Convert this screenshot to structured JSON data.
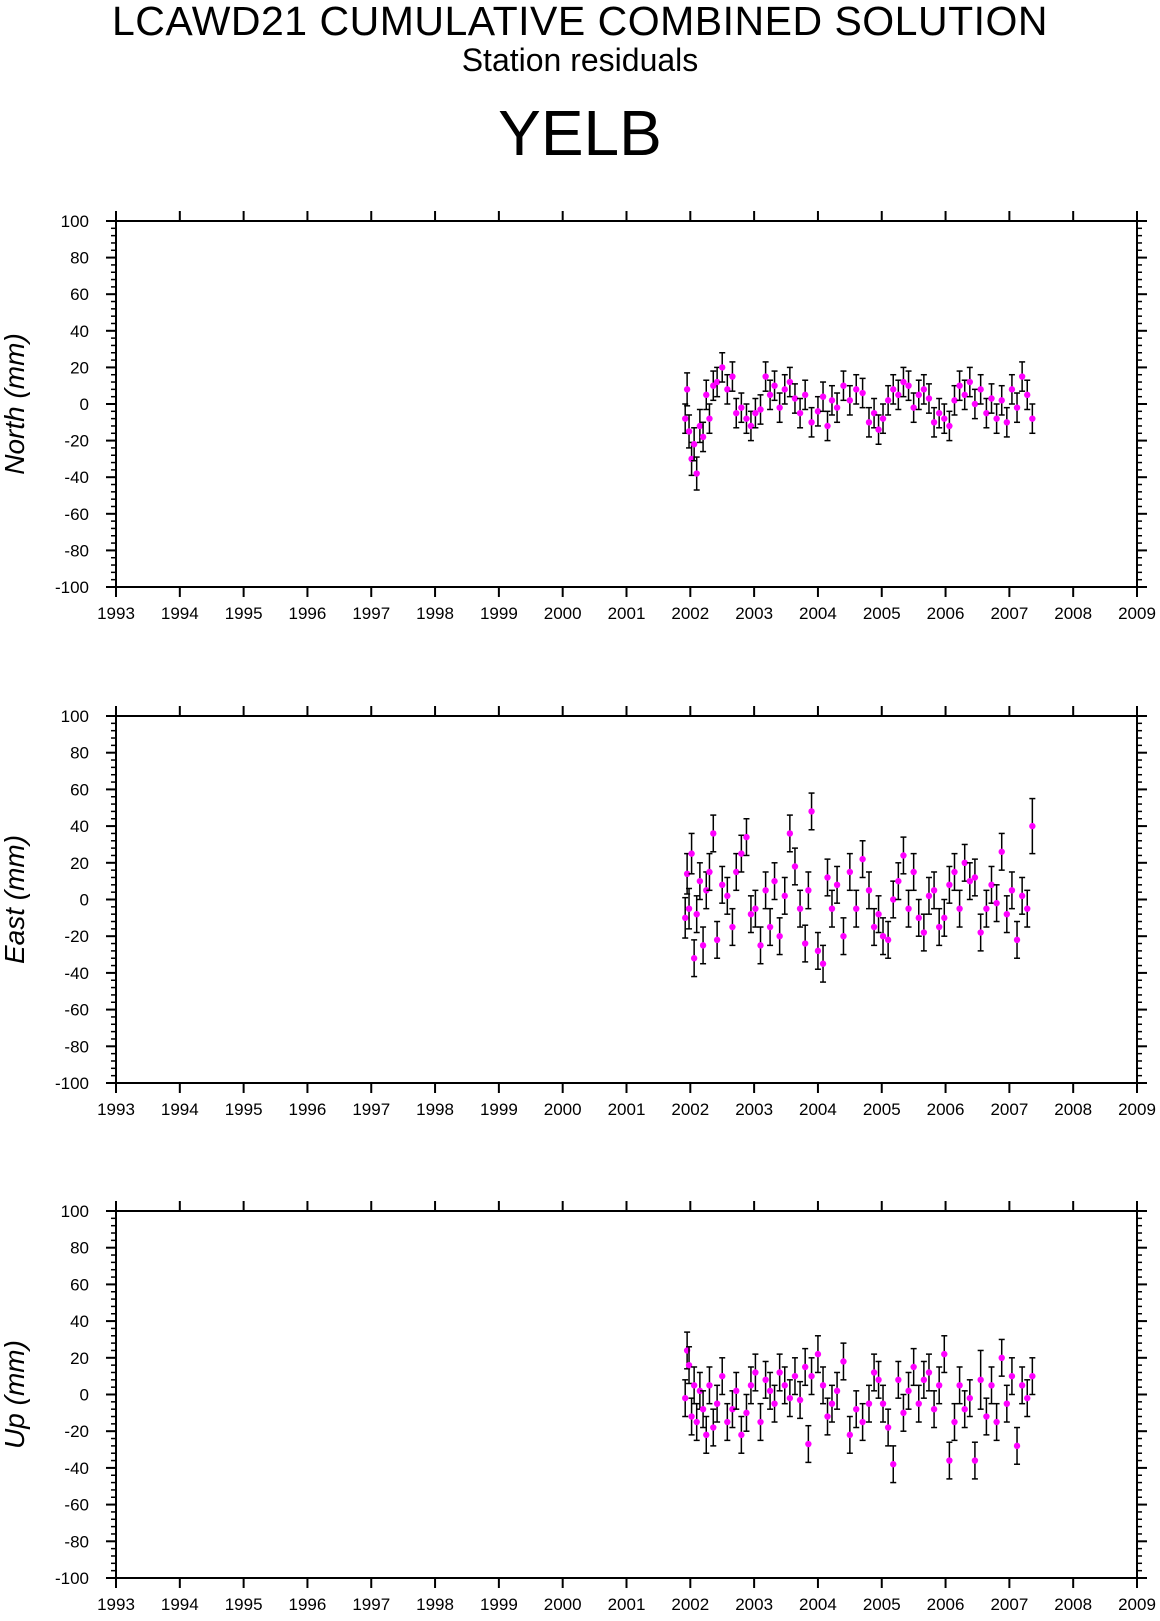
{
  "header": {
    "title": "LCAWD21 CUMULATIVE COMBINED SOLUTION",
    "subtitle": "Station residuals",
    "station": "YELB"
  },
  "colors": {
    "marker": "#ff00ff",
    "errorbar": "#000000",
    "axis": "#000000"
  },
  "chart_data": [
    {
      "type": "scatter",
      "ylabel": "North (mm)",
      "ylim": [
        -100,
        100
      ],
      "xlim": [
        1993,
        2009
      ],
      "x_tick_labels": [
        "1993",
        "1994",
        "1995",
        "1996",
        "1997",
        "1998",
        "1999",
        "2000",
        "2001",
        "2002",
        "2003",
        "2004",
        "2005",
        "2006",
        "2007",
        "2008",
        "2009"
      ],
      "y_tick_labels": [
        "100",
        "80",
        "60",
        "40",
        "20",
        "0",
        "-20",
        "-40",
        "-60",
        "-80",
        "-100"
      ],
      "error_bars": true,
      "series": [
        {
          "x": [
            2001.92,
            2001.95,
            2001.98,
            2002.02,
            2002.06,
            2002.1,
            2002.15,
            2002.2,
            2002.25,
            2002.3,
            2002.36,
            2002.42,
            2002.5,
            2002.58,
            2002.66,
            2002.72,
            2002.8,
            2002.88,
            2002.95,
            2003.02,
            2003.1,
            2003.18,
            2003.25,
            2003.32,
            2003.4,
            2003.48,
            2003.56,
            2003.64,
            2003.72,
            2003.8,
            2003.9,
            2004.0,
            2004.08,
            2004.15,
            2004.22,
            2004.3,
            2004.4,
            2004.5,
            2004.6,
            2004.7,
            2004.8,
            2004.88,
            2004.95,
            2005.02,
            2005.1,
            2005.18,
            2005.26,
            2005.34,
            2005.42,
            2005.5,
            2005.58,
            2005.66,
            2005.74,
            2005.82,
            2005.9,
            2005.98,
            2006.06,
            2006.14,
            2006.22,
            2006.3,
            2006.38,
            2006.46,
            2006.55,
            2006.64,
            2006.72,
            2006.8,
            2006.88,
            2006.96,
            2007.04,
            2007.12,
            2007.2,
            2007.28,
            2007.36
          ],
          "y": [
            -8,
            8,
            -15,
            -30,
            -22,
            -38,
            -12,
            -18,
            5,
            -8,
            10,
            12,
            20,
            8,
            15,
            -5,
            -2,
            -8,
            -12,
            -5,
            -3,
            15,
            5,
            10,
            -2,
            8,
            12,
            3,
            -5,
            5,
            -10,
            -4,
            4,
            -12,
            2,
            -2,
            10,
            2,
            8,
            6,
            -10,
            -5,
            -14,
            -8,
            2,
            8,
            5,
            12,
            10,
            -2,
            5,
            8,
            3,
            -10,
            -5,
            -8,
            -12,
            2,
            10,
            5,
            12,
            0,
            8,
            -5,
            3,
            -8,
            2,
            -10,
            8,
            -2,
            15,
            5,
            -8
          ],
          "err": [
            8,
            9,
            9,
            9,
            9,
            9,
            9,
            8,
            8,
            8,
            8,
            8,
            8,
            8,
            8,
            8,
            8,
            8,
            8,
            8,
            8,
            8,
            8,
            8,
            8,
            8,
            8,
            8,
            8,
            8,
            8,
            8,
            8,
            8,
            8,
            8,
            8,
            8,
            8,
            8,
            8,
            8,
            8,
            8,
            8,
            8,
            8,
            8,
            8,
            8,
            8,
            8,
            8,
            8,
            8,
            8,
            8,
            8,
            8,
            8,
            8,
            8,
            8,
            8,
            8,
            8,
            8,
            8,
            8,
            8,
            8,
            8,
            8
          ]
        }
      ]
    },
    {
      "type": "scatter",
      "ylabel": "East (mm)",
      "ylim": [
        -100,
        100
      ],
      "xlim": [
        1993,
        2009
      ],
      "x_tick_labels": [
        "1993",
        "1994",
        "1995",
        "1996",
        "1997",
        "1998",
        "1999",
        "2000",
        "2001",
        "2002",
        "2003",
        "2004",
        "2005",
        "2006",
        "2007",
        "2008",
        "2009"
      ],
      "y_tick_labels": [
        "100",
        "80",
        "60",
        "40",
        "20",
        "0",
        "-20",
        "-40",
        "-60",
        "-80",
        "-100"
      ],
      "error_bars": true,
      "series": [
        {
          "x": [
            2001.92,
            2001.95,
            2001.98,
            2002.02,
            2002.06,
            2002.1,
            2002.15,
            2002.2,
            2002.25,
            2002.3,
            2002.36,
            2002.42,
            2002.5,
            2002.58,
            2002.66,
            2002.72,
            2002.8,
            2002.88,
            2002.95,
            2003.02,
            2003.1,
            2003.18,
            2003.25,
            2003.32,
            2003.4,
            2003.48,
            2003.56,
            2003.64,
            2003.72,
            2003.8,
            2003.85,
            2003.9,
            2004.0,
            2004.08,
            2004.15,
            2004.22,
            2004.3,
            2004.4,
            2004.5,
            2004.6,
            2004.7,
            2004.8,
            2004.88,
            2004.95,
            2005.02,
            2005.1,
            2005.18,
            2005.26,
            2005.34,
            2005.42,
            2005.5,
            2005.58,
            2005.66,
            2005.74,
            2005.82,
            2005.9,
            2005.98,
            2006.06,
            2006.14,
            2006.22,
            2006.3,
            2006.38,
            2006.46,
            2006.55,
            2006.64,
            2006.72,
            2006.8,
            2006.88,
            2006.96,
            2007.04,
            2007.12,
            2007.2,
            2007.28,
            2007.36
          ],
          "y": [
            -10,
            14,
            -5,
            25,
            -32,
            -8,
            10,
            -25,
            5,
            15,
            36,
            -22,
            8,
            2,
            -15,
            15,
            25,
            34,
            -8,
            -5,
            -25,
            5,
            -15,
            10,
            -20,
            2,
            36,
            18,
            -5,
            -24,
            5,
            48,
            -28,
            -35,
            12,
            -5,
            8,
            -20,
            15,
            -5,
            22,
            5,
            -15,
            -8,
            -20,
            -22,
            0,
            10,
            24,
            -5,
            15,
            -10,
            -18,
            2,
            5,
            -15,
            -10,
            8,
            15,
            -5,
            20,
            10,
            12,
            -18,
            -5,
            8,
            -2,
            26,
            -8,
            5,
            -22,
            2,
            -5,
            40
          ],
          "err": [
            11,
            11,
            11,
            11,
            10,
            10,
            10,
            10,
            10,
            10,
            10,
            10,
            10,
            10,
            10,
            10,
            10,
            10,
            10,
            10,
            10,
            10,
            10,
            10,
            10,
            10,
            10,
            10,
            10,
            10,
            10,
            10,
            10,
            10,
            10,
            10,
            10,
            10,
            10,
            10,
            10,
            10,
            10,
            10,
            10,
            10,
            10,
            10,
            10,
            10,
            10,
            10,
            10,
            10,
            10,
            10,
            10,
            10,
            10,
            10,
            10,
            10,
            10,
            10,
            10,
            10,
            10,
            10,
            10,
            10,
            10,
            10,
            10,
            15
          ]
        }
      ]
    },
    {
      "type": "scatter",
      "ylabel": "Up (mm)",
      "ylim": [
        -100,
        100
      ],
      "xlim": [
        1993,
        2009
      ],
      "x_tick_labels": [
        "1993",
        "1994",
        "1995",
        "1996",
        "1997",
        "1998",
        "1999",
        "2000",
        "2001",
        "2002",
        "2003",
        "2004",
        "2005",
        "2006",
        "2007",
        "2008",
        "2009"
      ],
      "y_tick_labels": [
        "100",
        "80",
        "60",
        "40",
        "20",
        "0",
        "-20",
        "-40",
        "-60",
        "-80",
        "-100"
      ],
      "error_bars": true,
      "series": [
        {
          "x": [
            2001.92,
            2001.95,
            2001.98,
            2002.02,
            2002.06,
            2002.1,
            2002.15,
            2002.2,
            2002.25,
            2002.3,
            2002.36,
            2002.42,
            2002.5,
            2002.58,
            2002.66,
            2002.72,
            2002.8,
            2002.88,
            2002.95,
            2003.02,
            2003.1,
            2003.18,
            2003.25,
            2003.32,
            2003.4,
            2003.48,
            2003.56,
            2003.64,
            2003.72,
            2003.8,
            2003.85,
            2003.9,
            2004.0,
            2004.08,
            2004.15,
            2004.22,
            2004.3,
            2004.4,
            2004.5,
            2004.6,
            2004.7,
            2004.8,
            2004.88,
            2004.95,
            2005.02,
            2005.1,
            2005.18,
            2005.26,
            2005.34,
            2005.42,
            2005.5,
            2005.58,
            2005.66,
            2005.74,
            2005.82,
            2005.9,
            2005.98,
            2006.06,
            2006.14,
            2006.22,
            2006.3,
            2006.38,
            2006.46,
            2006.55,
            2006.64,
            2006.72,
            2006.8,
            2006.88,
            2006.96,
            2007.04,
            2007.12,
            2007.2,
            2007.28,
            2007.36
          ],
          "y": [
            -2,
            24,
            16,
            -12,
            5,
            -15,
            2,
            -8,
            -22,
            5,
            -18,
            -5,
            10,
            -15,
            -8,
            2,
            -22,
            -10,
            5,
            12,
            -15,
            8,
            2,
            -5,
            12,
            5,
            -2,
            10,
            -3,
            15,
            -27,
            10,
            22,
            5,
            -12,
            -5,
            2,
            18,
            -22,
            -8,
            -15,
            -5,
            12,
            8,
            -5,
            -18,
            -38,
            8,
            -10,
            2,
            15,
            -5,
            8,
            12,
            -8,
            5,
            22,
            -36,
            -15,
            5,
            -8,
            -2,
            -36,
            8,
            -12,
            5,
            -15,
            20,
            -5,
            10,
            -28,
            5,
            -2,
            10
          ],
          "err": [
            10,
            10,
            10,
            10,
            10,
            10,
            10,
            10,
            10,
            10,
            10,
            10,
            10,
            10,
            10,
            10,
            10,
            10,
            10,
            10,
            10,
            10,
            10,
            10,
            10,
            10,
            10,
            10,
            10,
            10,
            10,
            10,
            10,
            10,
            10,
            10,
            10,
            10,
            10,
            10,
            10,
            10,
            10,
            10,
            10,
            10,
            10,
            10,
            10,
            10,
            10,
            10,
            10,
            10,
            10,
            10,
            10,
            10,
            10,
            10,
            10,
            10,
            10,
            16,
            10,
            10,
            10,
            10,
            10,
            10,
            10,
            10,
            10,
            10
          ]
        }
      ]
    }
  ]
}
